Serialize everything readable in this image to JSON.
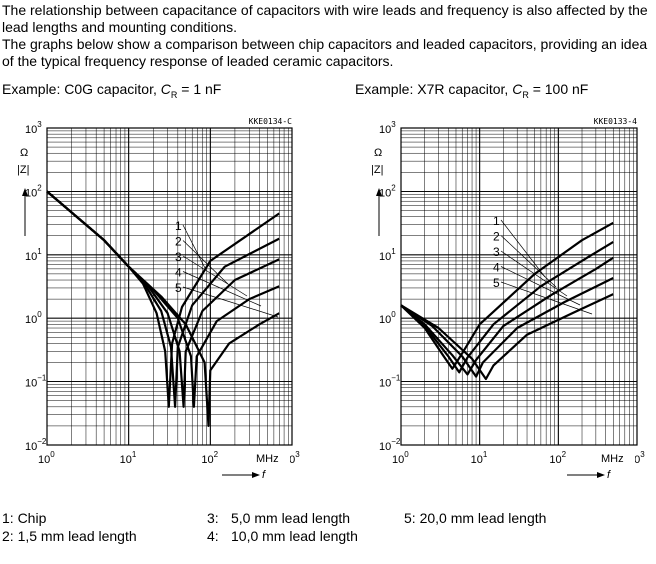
{
  "intro": {
    "p1": "The relationship between capacitance of capacitors with wire leads and frequency is also affected by the lead lengths and mounting conditions.",
    "p2": "The graphs below show a comparison between chip capacitors and leaded capacitors, providing an idea of the typical frequency response of leaded ceramic capacitors."
  },
  "examples": [
    {
      "prefix": "Example: C0G capacitor, ",
      "sym": "C",
      "sub": "R",
      "suffix": " = 1 nF"
    },
    {
      "prefix": "Example: X7R capacitor, ",
      "sym": "C",
      "sub": "R",
      "suffix": " = 100 nF"
    }
  ],
  "legend": {
    "l1": "1: Chip",
    "l2": "2: 1,5 mm lead length",
    "l3num": "3:",
    "l3": "5,0 mm lead length",
    "l4num": "4:",
    "l4": "10,0 mm lead length",
    "l5": "5: 20,0 mm lead length"
  },
  "chart_data": [
    {
      "type": "line",
      "code": "KKE0134-C",
      "ylabel": "|Z|",
      "yunit": "Ω",
      "xlabel": "f",
      "xunit": "MHz",
      "xscale": "log",
      "yscale": "log",
      "xlim": [
        1,
        1000
      ],
      "ylim": [
        0.01,
        1000
      ],
      "grid": true,
      "x_ticks": [
        {
          "b": "10",
          "e": "0"
        },
        {
          "b": "10",
          "e": "1"
        },
        {
          "b": "10",
          "e": "2"
        },
        {
          "b": "10",
          "e": "3"
        }
      ],
      "y_ticks": [
        {
          "b": "10",
          "e": "−2"
        },
        {
          "b": "10",
          "e": "−1"
        },
        {
          "b": "10",
          "e": "0"
        },
        {
          "b": "10",
          "e": "1"
        },
        {
          "b": "10",
          "e": "2"
        },
        {
          "b": "10",
          "e": "3"
        }
      ],
      "curve_labels": [
        "1",
        "2",
        "3",
        "4",
        "5"
      ],
      "series": [
        {
          "label": "1",
          "points": [
            [
              1,
              100
            ],
            [
              5,
              17
            ],
            [
              10,
              6.5
            ],
            [
              15,
              3.5
            ],
            [
              22,
              1.2
            ],
            [
              28,
              0.3
            ],
            [
              31,
              0.04
            ],
            [
              34,
              0.4
            ],
            [
              45,
              1.5
            ],
            [
              100,
              8
            ],
            [
              700,
              45
            ]
          ]
        },
        {
          "label": "2",
          "points": [
            [
              1,
              100
            ],
            [
              5,
              17
            ],
            [
              10,
              6.5
            ],
            [
              15,
              3.8
            ],
            [
              25,
              1.3
            ],
            [
              33,
              0.35
            ],
            [
              37,
              0.04
            ],
            [
              40,
              0.35
            ],
            [
              60,
              1.6
            ],
            [
              150,
              6.5
            ],
            [
              700,
              18
            ]
          ]
        },
        {
          "label": "3",
          "points": [
            [
              1,
              100
            ],
            [
              5,
              17
            ],
            [
              10,
              6.5
            ],
            [
              18,
              3
            ],
            [
              30,
              1.2
            ],
            [
              42,
              0.3
            ],
            [
              47,
              0.04
            ],
            [
              50,
              0.3
            ],
            [
              80,
              1.3
            ],
            [
              200,
              4
            ],
            [
              700,
              8.5
            ]
          ]
        },
        {
          "label": "4",
          "points": [
            [
              1,
              100
            ],
            [
              5,
              17
            ],
            [
              10,
              6.5
            ],
            [
              20,
              2.8
            ],
            [
              40,
              1
            ],
            [
              58,
              0.25
            ],
            [
              63,
              0.04
            ],
            [
              68,
              0.25
            ],
            [
              120,
              0.9
            ],
            [
              300,
              2
            ],
            [
              700,
              3.2
            ]
          ]
        },
        {
          "label": "5",
          "points": [
            [
              1,
              100
            ],
            [
              5,
              17
            ],
            [
              10,
              6.5
            ],
            [
              25,
              2.2
            ],
            [
              50,
              0.8
            ],
            [
              85,
              0.2
            ],
            [
              95,
              0.02
            ],
            [
              100,
              0.15
            ],
            [
              170,
              0.4
            ],
            [
              400,
              0.8
            ],
            [
              700,
              1.2
            ]
          ]
        }
      ]
    },
    {
      "type": "line",
      "code": "KKE0133-4",
      "ylabel": "|Z|",
      "yunit": "Ω",
      "xlabel": "f",
      "xunit": "MHz",
      "xscale": "log",
      "yscale": "log",
      "xlim": [
        1,
        1000
      ],
      "ylim": [
        0.01,
        1000
      ],
      "grid": true,
      "x_ticks": [
        {
          "b": "10",
          "e": "0"
        },
        {
          "b": "10",
          "e": "1"
        },
        {
          "b": "10",
          "e": "2"
        },
        {
          "b": "10",
          "e": "3"
        }
      ],
      "y_ticks": [
        {
          "b": "10",
          "e": "−2"
        },
        {
          "b": "10",
          "e": "−1"
        },
        {
          "b": "10",
          "e": "0"
        },
        {
          "b": "10",
          "e": "1"
        },
        {
          "b": "10",
          "e": "2"
        },
        {
          "b": "10",
          "e": "3"
        }
      ],
      "curve_labels": [
        "1",
        "2",
        "3",
        "4",
        "5"
      ],
      "series": [
        {
          "label": "1",
          "points": [
            [
              1,
              1.6
            ],
            [
              2,
              0.7
            ],
            [
              3.5,
              0.25
            ],
            [
              4.5,
              0.16
            ],
            [
              6,
              0.28
            ],
            [
              10,
              0.8
            ],
            [
              50,
              5
            ],
            [
              200,
              17
            ],
            [
              500,
              32
            ]
          ]
        },
        {
          "label": "2",
          "points": [
            [
              1,
              1.6
            ],
            [
              2,
              0.75
            ],
            [
              4,
              0.25
            ],
            [
              5.5,
              0.14
            ],
            [
              7,
              0.24
            ],
            [
              15,
              0.8
            ],
            [
              60,
              3.2
            ],
            [
              250,
              9.5
            ],
            [
              500,
              16
            ]
          ]
        },
        {
          "label": "3",
          "points": [
            [
              1,
              1.6
            ],
            [
              2,
              0.8
            ],
            [
              4.5,
              0.26
            ],
            [
              7,
              0.13
            ],
            [
              9,
              0.22
            ],
            [
              20,
              0.75
            ],
            [
              80,
              2.3
            ],
            [
              300,
              6
            ],
            [
              500,
              9
            ]
          ]
        },
        {
          "label": "4",
          "points": [
            [
              1,
              1.6
            ],
            [
              2.5,
              0.75
            ],
            [
              6,
              0.25
            ],
            [
              9,
              0.12
            ],
            [
              11,
              0.2
            ],
            [
              30,
              0.7
            ],
            [
              120,
              1.8
            ],
            [
              500,
              4.3
            ]
          ]
        },
        {
          "label": "5",
          "points": [
            [
              1,
              1.6
            ],
            [
              3,
              0.7
            ],
            [
              8,
              0.23
            ],
            [
              12,
              0.11
            ],
            [
              15,
              0.18
            ],
            [
              40,
              0.55
            ],
            [
              150,
              1.2
            ],
            [
              500,
              2.4
            ]
          ]
        }
      ]
    }
  ]
}
